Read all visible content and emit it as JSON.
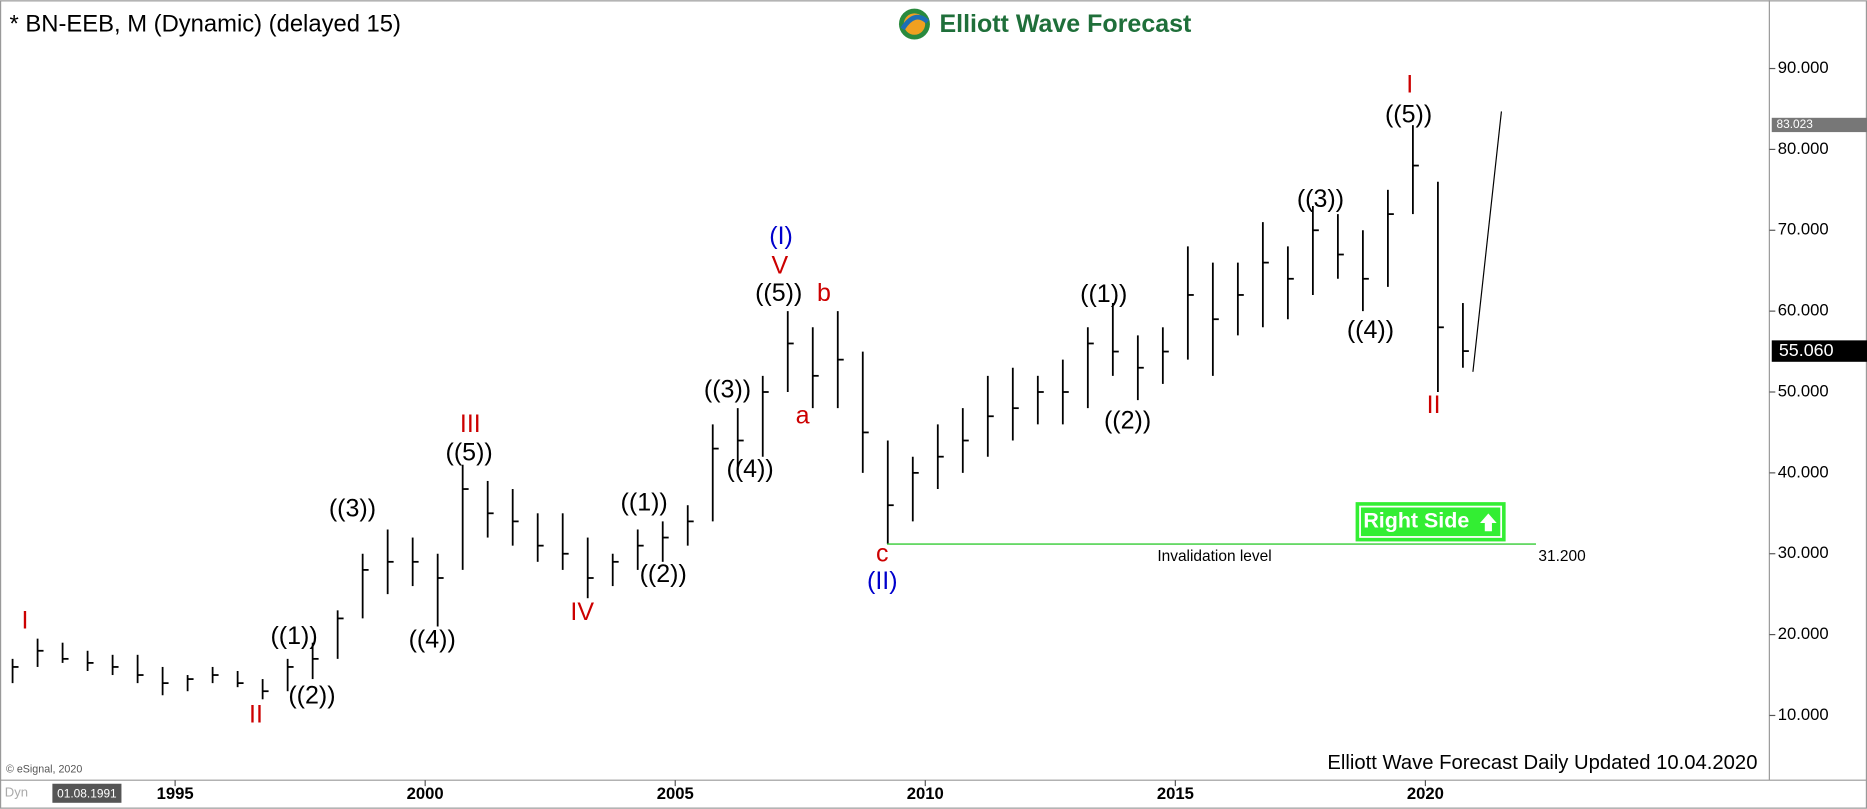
{
  "chart_data": {
    "type": "ohlc",
    "title": "* BN-EEB, M (Dynamic) (delayed 15)",
    "brand": "Elliott Wave Forecast",
    "footer": "Elliott Wave Forecast Daily Updated 10.04.2020",
    "copyright": "© eSignal, 2020",
    "cursor_mode": "Dyn",
    "cursor_date": "01.08.1991",
    "color": "#000000",
    "x": [
      1991.75,
      1992.25,
      1992.75,
      1993.25,
      1993.75,
      1994.25,
      1994.75,
      1995.25,
      1995.75,
      1996.25,
      1996.75,
      1997.25,
      1997.75,
      1998.25,
      1998.75,
      1999.25,
      1999.75,
      2000.25,
      2000.75,
      2001.25,
      2001.75,
      2002.25,
      2002.75,
      2003.25,
      2003.75,
      2004.25,
      2004.75,
      2005.25,
      2005.75,
      2006.25,
      2006.75,
      2007.25,
      2007.75,
      2008.25,
      2008.75,
      2009.25,
      2009.75,
      2010.25,
      2010.75,
      2011.25,
      2011.75,
      2012.25,
      2012.75,
      2013.25,
      2013.75,
      2014.25,
      2014.75,
      2015.25,
      2015.75,
      2016.25,
      2016.75,
      2017.25,
      2017.75,
      2018.25,
      2018.75,
      2019.25,
      2019.75,
      2020.25,
      2020.75
    ],
    "high": [
      17,
      19.5,
      19,
      18,
      17.5,
      17.5,
      16,
      15,
      16,
      15.5,
      14.5,
      17,
      19,
      23,
      30,
      33,
      32,
      30,
      41,
      39,
      38,
      35,
      35,
      32,
      30,
      33,
      34,
      36,
      46,
      48,
      52,
      60,
      58,
      60,
      55,
      44,
      42,
      46,
      48,
      52,
      53,
      52,
      54,
      58,
      61,
      57,
      58,
      68,
      66,
      66,
      71,
      68,
      73,
      72,
      70,
      75,
      83,
      76,
      61
    ],
    "low": [
      14,
      16,
      16.5,
      15.5,
      15,
      14,
      12.5,
      13,
      14,
      13.5,
      12,
      13,
      14.5,
      17,
      22,
      25,
      26,
      21,
      28,
      32,
      31,
      29,
      28,
      24.5,
      26,
      28,
      29,
      31,
      34,
      40,
      42,
      50,
      48,
      48,
      40,
      31.2,
      34,
      38,
      40,
      42,
      44,
      46,
      46,
      48,
      52,
      49,
      51,
      54,
      52,
      57,
      58,
      59,
      62,
      64,
      60,
      63,
      72,
      50,
      53
    ],
    "close": [
      16,
      18,
      17,
      16.5,
      16,
      15,
      14,
      14.5,
      15,
      14,
      13,
      16,
      17,
      22,
      28,
      29,
      29,
      27,
      38,
      35,
      34,
      31,
      30,
      27,
      29,
      31,
      32,
      34,
      43,
      44,
      50,
      56,
      52,
      54,
      45,
      36,
      40,
      42,
      44,
      47,
      48,
      50,
      50,
      56,
      55,
      53,
      55,
      62,
      59,
      62,
      66,
      64,
      70,
      67,
      64,
      72,
      78,
      58,
      55.06
    ],
    "xlim": [
      1991.57,
      2026.83
    ],
    "xticks": [
      1995,
      2000,
      2005,
      2010,
      2015,
      2020
    ],
    "ylim": [
      2,
      98
    ],
    "yticks": [
      {
        "value": 10,
        "label": "10.000"
      },
      {
        "value": 20,
        "label": "20.000"
      },
      {
        "value": 30,
        "label": "30.000"
      },
      {
        "value": 40,
        "label": "40.000"
      },
      {
        "value": 50,
        "label": "50.000"
      },
      {
        "value": 60,
        "label": "60.000"
      },
      {
        "value": 70,
        "label": "70.000"
      },
      {
        "value": 80,
        "label": "80.000"
      },
      {
        "value": 90,
        "label": "90.000"
      }
    ],
    "last_price": {
      "value": 55.06,
      "label": "55.060"
    },
    "high_price": {
      "value": 83.023,
      "label": "83.023"
    },
    "invalidation": {
      "value": 31.2,
      "label": "31.200",
      "text": "Invalidation level",
      "color": "#33cc33"
    },
    "projection": {
      "x": [
        2020.95,
        2021.52
      ],
      "y": [
        52.5,
        84.7
      ]
    },
    "right_side": {
      "text": "Right Side",
      "color": "#33ee33"
    },
    "annotations": [
      {
        "text": "I",
        "color": "#cc0000"
      },
      {
        "text": "II",
        "color": "#cc0000"
      },
      {
        "text": "((1))",
        "color": "#000000"
      },
      {
        "text": "((2))",
        "color": "#000000"
      },
      {
        "text": "((3))",
        "color": "#000000"
      },
      {
        "text": "((4))",
        "color": "#000000"
      },
      {
        "text": "III",
        "color": "#cc0000"
      },
      {
        "text": "((5))",
        "color": "#000000"
      },
      {
        "text": "IV",
        "color": "#cc0000"
      },
      {
        "text": "((1))",
        "color": "#000000"
      },
      {
        "text": "((2))",
        "color": "#000000"
      },
      {
        "text": "((3))",
        "color": "#000000"
      },
      {
        "text": "((4))",
        "color": "#000000"
      },
      {
        "text": "((5))",
        "color": "#000000"
      },
      {
        "text": "V",
        "color": "#cc0000"
      },
      {
        "text": "(I)",
        "color": "#0000cc"
      },
      {
        "text": "b",
        "color": "#cc0000"
      },
      {
        "text": "a",
        "color": "#cc0000"
      },
      {
        "text": "c",
        "color": "#cc0000"
      },
      {
        "text": "(II)",
        "color": "#0000cc"
      },
      {
        "text": "((1))",
        "color": "#000000"
      },
      {
        "text": "((2))",
        "color": "#000000"
      },
      {
        "text": "((3))",
        "color": "#000000"
      },
      {
        "text": "((4))",
        "color": "#000000"
      },
      {
        "text": "I",
        "color": "#cc0000"
      },
      {
        "text": "((5))",
        "color": "#000000"
      },
      {
        "text": "II",
        "color": "#cc0000"
      }
    ]
  }
}
